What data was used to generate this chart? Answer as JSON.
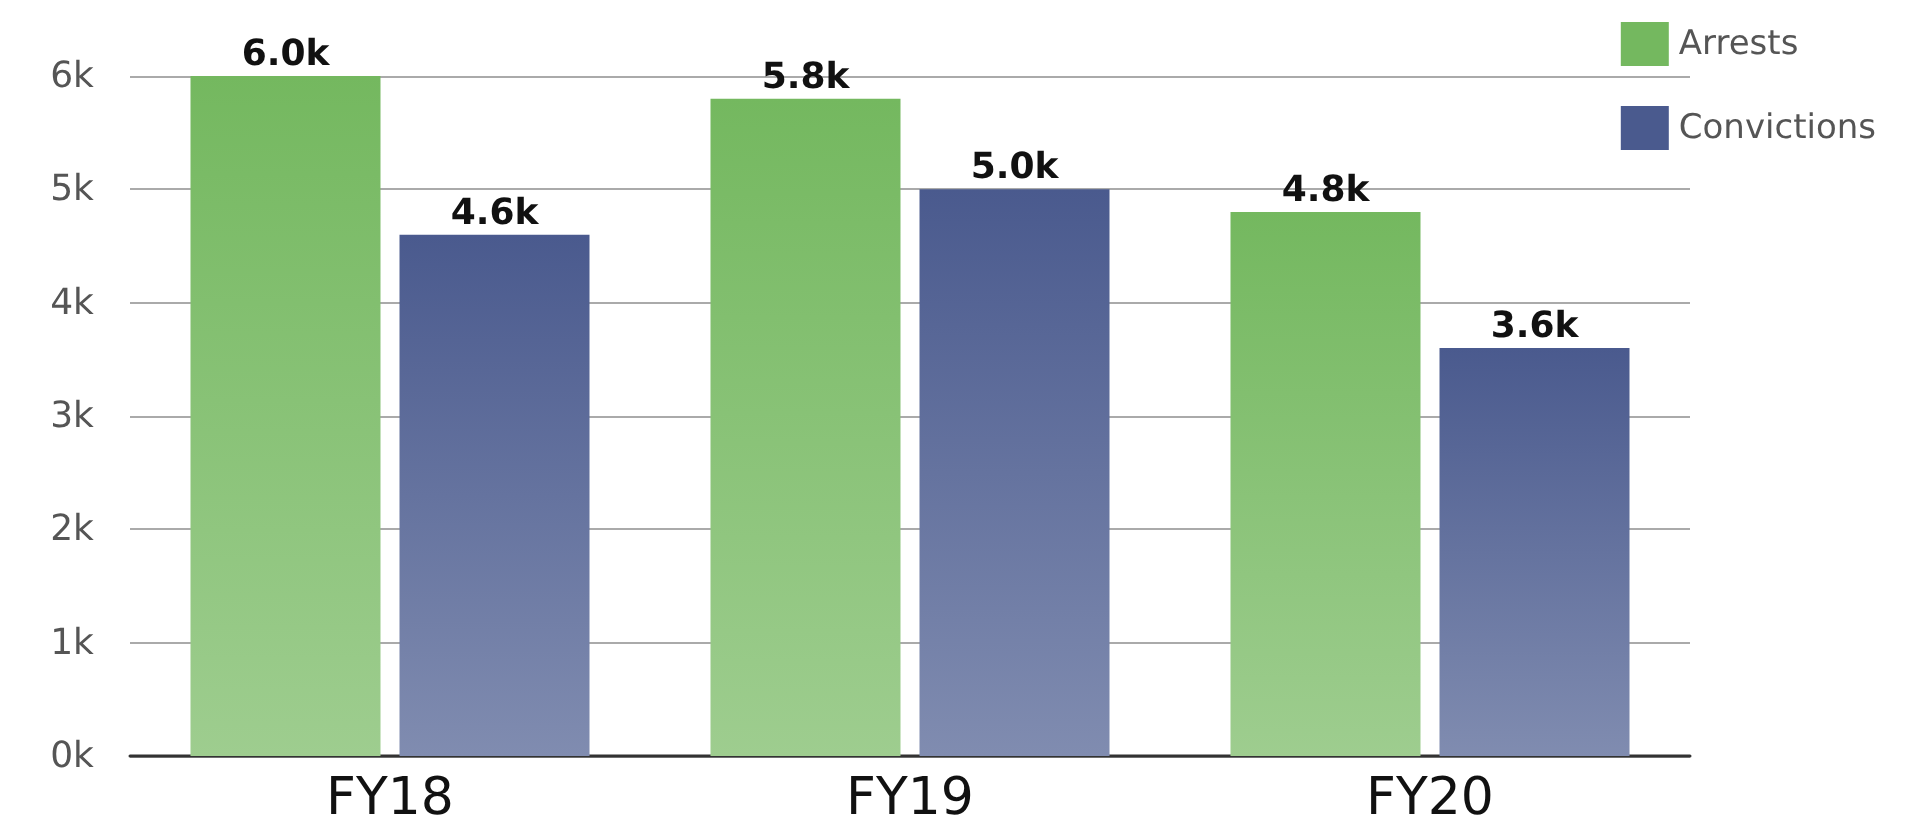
{
  "chart_data": {
    "type": "bar",
    "categories": [
      "FY18",
      "FY19",
      "FY20"
    ],
    "series": [
      {
        "name": "Arrests",
        "color": "#74b85f",
        "values": [
          6000,
          5800,
          4800
        ],
        "value_labels": [
          "6.0k",
          "5.8k",
          "4.8k"
        ]
      },
      {
        "name": "Convictions",
        "color": "#4a5a8e",
        "values": [
          4600,
          5000,
          3600
        ],
        "value_labels": [
          "4.6k",
          "5.0k",
          "3.6k"
        ]
      }
    ],
    "ylim": [
      0,
      6000
    ],
    "yticks": [
      {
        "value": 0,
        "label": "0k"
      },
      {
        "value": 1000,
        "label": "1k"
      },
      {
        "value": 2000,
        "label": "2k"
      },
      {
        "value": 3000,
        "label": "3k"
      },
      {
        "value": 4000,
        "label": "4k"
      },
      {
        "value": 5000,
        "label": "5k"
      },
      {
        "value": 6000,
        "label": "6k"
      }
    ],
    "grid": "y",
    "legend": "top right"
  }
}
